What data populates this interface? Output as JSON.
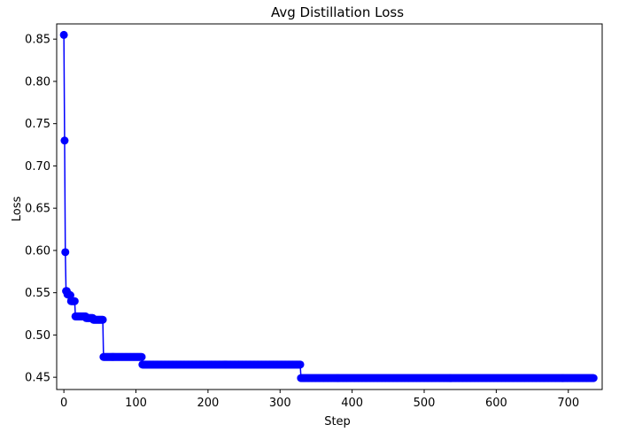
{
  "chart_data": {
    "type": "line",
    "title": "Avg Distillation Loss",
    "xlabel": "Step",
    "ylabel": "Loss",
    "xlim": [
      -10,
      747
    ],
    "ylim": [
      0.4355,
      0.868
    ],
    "xticks": [
      0,
      100,
      200,
      300,
      400,
      500,
      600,
      700
    ],
    "yticks": [
      0.45,
      0.5,
      0.55,
      0.6,
      0.65,
      0.7,
      0.75,
      0.8,
      0.85
    ],
    "ytick_labels": [
      "0.45",
      "0.50",
      "0.55",
      "0.60",
      "0.65",
      "0.70",
      "0.75",
      "0.80",
      "0.85"
    ],
    "grid": false,
    "marker": "circle",
    "color": "#0000ff",
    "segments": [
      {
        "x_start": 0,
        "x_end": 0,
        "y": 0.855
      },
      {
        "x_start": 1,
        "x_end": 1,
        "y": 0.73
      },
      {
        "x_start": 2,
        "x_end": 2,
        "y": 0.598
      },
      {
        "x_start": 3,
        "x_end": 4,
        "y": 0.552
      },
      {
        "x_start": 5,
        "x_end": 7,
        "y": 0.548
      },
      {
        "x_start": 8,
        "x_end": 9,
        "y": 0.547
      },
      {
        "x_start": 10,
        "x_end": 15,
        "y": 0.54
      },
      {
        "x_start": 16,
        "x_end": 30,
        "y": 0.522
      },
      {
        "x_start": 31,
        "x_end": 40,
        "y": 0.52
      },
      {
        "x_start": 41,
        "x_end": 54,
        "y": 0.518
      },
      {
        "x_start": 55,
        "x_end": 108,
        "y": 0.474
      },
      {
        "x_start": 109,
        "x_end": 328,
        "y": 0.465
      },
      {
        "x_start": 329,
        "x_end": 735,
        "y": 0.449
      }
    ]
  }
}
